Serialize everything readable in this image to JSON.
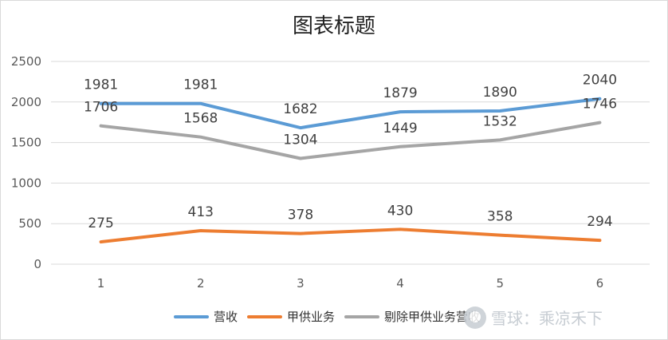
{
  "chart_data": {
    "type": "line",
    "title": "图表标题",
    "categories": [
      "1",
      "2",
      "3",
      "4",
      "5",
      "6"
    ],
    "y_ticks": [
      0,
      500,
      1000,
      1500,
      2000,
      2500
    ],
    "ylim": [
      0,
      2500
    ],
    "grid": "horizontal",
    "legend_position": "bottom",
    "series": [
      {
        "name": "营收",
        "color": "#5b9bd5",
        "values": [
          1981,
          1981,
          1682,
          1879,
          1890,
          2040
        ]
      },
      {
        "name": "甲供业务",
        "color": "#ed7d31",
        "values": [
          275,
          413,
          378,
          430,
          358,
          294
        ]
      },
      {
        "name": "剔除甲供业务营收",
        "color": "#a5a5a5",
        "values": [
          1706,
          1568,
          1304,
          1449,
          1532,
          1746
        ]
      }
    ]
  },
  "watermark": {
    "text": "雪球：乘凉禾下"
  }
}
